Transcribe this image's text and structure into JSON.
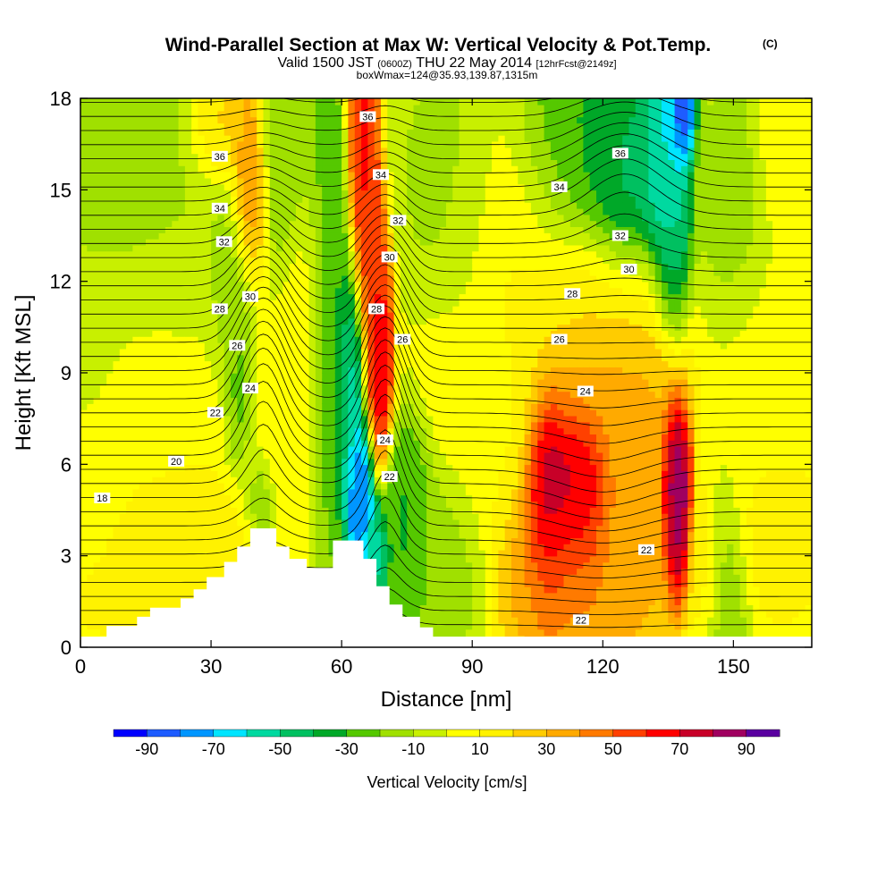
{
  "chart_data": {
    "type": "heatmap",
    "title": "Wind-Parallel Section at Max W: Vertical Velocity & Pot.Temp.",
    "title_mark": "(C)",
    "subtitle": {
      "valid": "Valid 1500 JST",
      "zulu": "(0600Z)",
      "date": "THU 22 May 2014",
      "forecast": "[12hrFcst@2149z]"
    },
    "subtitle2": "boxWmax=124@35.93,139.87,1315m",
    "xlabel": "Distance [nm]",
    "ylabel": "Height [Kft MSL]",
    "xlim": [
      0,
      168
    ],
    "ylim": [
      0,
      18
    ],
    "xticks": [
      0,
      30,
      60,
      90,
      120,
      150
    ],
    "yticks": [
      0,
      3,
      6,
      9,
      12,
      15,
      18
    ],
    "colorbar": {
      "label": "Vertical Velocity [cm/s]",
      "ticks": [
        -90,
        -70,
        -50,
        -30,
        -10,
        10,
        30,
        50,
        70,
        90
      ],
      "bins": [
        -100,
        -90,
        -80,
        -70,
        -60,
        -50,
        -40,
        -30,
        -20,
        -10,
        0,
        10,
        20,
        30,
        40,
        50,
        60,
        70,
        80,
        90,
        100
      ],
      "colors": [
        "#0000ff",
        "#1e5cff",
        "#0096ff",
        "#00e5ff",
        "#00d9a0",
        "#00c060",
        "#00a828",
        "#55c800",
        "#a0e000",
        "#c8f000",
        "#ffff00",
        "#fff200",
        "#ffcc00",
        "#ffaa00",
        "#ff7a00",
        "#ff4000",
        "#ff0000",
        "#c80028",
        "#a00060",
        "#5a00a0"
      ]
    },
    "terrain": [
      [
        0,
        0.35
      ],
      [
        6,
        0.35
      ],
      [
        6,
        0.7
      ],
      [
        13,
        0.7
      ],
      [
        13,
        1.0
      ],
      [
        16,
        1.0
      ],
      [
        16,
        1.3
      ],
      [
        23,
        1.3
      ],
      [
        23,
        1.6
      ],
      [
        26,
        1.6
      ],
      [
        26,
        1.9
      ],
      [
        29,
        1.9
      ],
      [
        29,
        2.3
      ],
      [
        33,
        2.3
      ],
      [
        33,
        2.8
      ],
      [
        36,
        2.8
      ],
      [
        36,
        3.3
      ],
      [
        39,
        3.3
      ],
      [
        39,
        3.9
      ],
      [
        45,
        3.9
      ],
      [
        45,
        3.3
      ],
      [
        48,
        3.3
      ],
      [
        48,
        2.9
      ],
      [
        52,
        2.9
      ],
      [
        52,
        2.6
      ],
      [
        58,
        2.6
      ],
      [
        58,
        3.5
      ],
      [
        65,
        3.5
      ],
      [
        65,
        2.9
      ],
      [
        68,
        2.9
      ],
      [
        68,
        2.0
      ],
      [
        71,
        2.0
      ],
      [
        71,
        1.4
      ],
      [
        74,
        1.4
      ],
      [
        74,
        1.0
      ],
      [
        78,
        1.0
      ],
      [
        78,
        0.65
      ],
      [
        81,
        0.65
      ],
      [
        81,
        0.35
      ],
      [
        168,
        0.35
      ]
    ],
    "field_centers": [
      {
        "x": 0,
        "y": 10,
        "value": -12,
        "sx": 8,
        "sy": 4
      },
      {
        "x": 12,
        "y": 14,
        "value": -14,
        "sx": 14,
        "sy": 5
      },
      {
        "x": 10,
        "y": 6,
        "value": 12,
        "sx": 30,
        "sy": 5
      },
      {
        "x": 22,
        "y": 8,
        "value": 10,
        "sx": 12,
        "sy": 3
      },
      {
        "x": 27,
        "y": 12,
        "value": -10,
        "sx": 10,
        "sy": 3
      },
      {
        "x": 32,
        "y": 17,
        "value": 25,
        "sx": 5,
        "sy": 1.5
      },
      {
        "x": 39,
        "y": 15,
        "value": 50,
        "sx": 3,
        "sy": 2.5
      },
      {
        "x": 34,
        "y": 11,
        "value": -25,
        "sx": 4,
        "sy": 2.5
      },
      {
        "x": 36,
        "y": 8,
        "value": -45,
        "sx": 2.6,
        "sy": 2.5
      },
      {
        "x": 40,
        "y": 4.5,
        "value": -40,
        "sx": 3,
        "sy": 1.5
      },
      {
        "x": 37,
        "y": 4,
        "value": 25,
        "sx": 4,
        "sy": 1.8
      },
      {
        "x": 32,
        "y": 3.2,
        "value": 22,
        "sx": 5,
        "sy": 1.2
      },
      {
        "x": 47,
        "y": 16,
        "value": -20,
        "sx": 5,
        "sy": 3
      },
      {
        "x": 51,
        "y": 10,
        "value": 10,
        "sx": 4,
        "sy": 4
      },
      {
        "x": 57,
        "y": 10,
        "value": -30,
        "sx": 4,
        "sy": 6
      },
      {
        "x": 62,
        "y": 8,
        "value": -60,
        "sx": 3,
        "sy": 3
      },
      {
        "x": 64,
        "y": 5,
        "value": -95,
        "sx": 2.5,
        "sy": 2
      },
      {
        "x": 67,
        "y": 3,
        "value": -55,
        "sx": 2.5,
        "sy": 1.5
      },
      {
        "x": 65,
        "y": 16,
        "value": 65,
        "sx": 2.5,
        "sy": 3
      },
      {
        "x": 68,
        "y": 9.5,
        "value": 75,
        "sx": 2.5,
        "sy": 2.5
      },
      {
        "x": 67,
        "y": 12.5,
        "value": 55,
        "sx": 2.5,
        "sy": 2
      },
      {
        "x": 76,
        "y": 4,
        "value": -35,
        "sx": 4,
        "sy": 2.5
      },
      {
        "x": 83,
        "y": 3,
        "value": -15,
        "sx": 6,
        "sy": 2.5
      },
      {
        "x": 86,
        "y": 15,
        "value": -15,
        "sx": 8,
        "sy": 3
      },
      {
        "x": 92,
        "y": 8,
        "value": 8,
        "sx": 10,
        "sy": 3
      },
      {
        "x": 100,
        "y": 14,
        "value": 12,
        "sx": 12,
        "sy": 3
      },
      {
        "x": 108,
        "y": 5,
        "value": 95,
        "sx": 4,
        "sy": 2.5
      },
      {
        "x": 115,
        "y": 5,
        "value": 95,
        "sx": 5,
        "sy": 2.2
      },
      {
        "x": 112,
        "y": 3,
        "value": 40,
        "sx": 10,
        "sy": 3
      },
      {
        "x": 125,
        "y": 4,
        "value": 35,
        "sx": 8,
        "sy": 3
      },
      {
        "x": 120,
        "y": 9,
        "value": 35,
        "sx": 12,
        "sy": 2.5
      },
      {
        "x": 118,
        "y": 11.5,
        "value": 15,
        "sx": 14,
        "sy": 2
      },
      {
        "x": 137,
        "y": 5,
        "value": 95,
        "sx": 2.5,
        "sy": 2.2
      },
      {
        "x": 144,
        "y": 3,
        "value": 20,
        "sx": 3,
        "sy": 2
      },
      {
        "x": 148,
        "y": 2.5,
        "value": -20,
        "sx": 4,
        "sy": 2.5
      },
      {
        "x": 160,
        "y": 4,
        "value": 18,
        "sx": 8,
        "sy": 2
      },
      {
        "x": 112,
        "y": 16,
        "value": -35,
        "sx": 10,
        "sy": 2.5
      },
      {
        "x": 125,
        "y": 15,
        "value": -45,
        "sx": 7,
        "sy": 2.5
      },
      {
        "x": 134,
        "y": 16,
        "value": -65,
        "sx": 4,
        "sy": 3
      },
      {
        "x": 138,
        "y": 17.5,
        "value": -95,
        "sx": 2,
        "sy": 1.2
      },
      {
        "x": 136,
        "y": 13,
        "value": -50,
        "sx": 3,
        "sy": 2
      },
      {
        "x": 150,
        "y": 14,
        "value": -15,
        "sx": 6,
        "sy": 3
      },
      {
        "x": 162,
        "y": 16,
        "value": 8,
        "sx": 5,
        "sy": 2
      },
      {
        "x": 158,
        "y": 8,
        "value": 6,
        "sx": 10,
        "sy": 4
      }
    ],
    "contour_labels": [
      {
        "x": 5,
        "y": 4.9,
        "text": "18"
      },
      {
        "x": 22,
        "y": 6.1,
        "text": "20"
      },
      {
        "x": 31,
        "y": 7.7,
        "text": "22"
      },
      {
        "x": 39,
        "y": 8.5,
        "text": "24"
      },
      {
        "x": 36,
        "y": 9.9,
        "text": "26"
      },
      {
        "x": 32,
        "y": 11.1,
        "text": "28"
      },
      {
        "x": 39,
        "y": 11.5,
        "text": "30"
      },
      {
        "x": 33,
        "y": 13.3,
        "text": "32"
      },
      {
        "x": 32,
        "y": 14.4,
        "text": "34"
      },
      {
        "x": 32,
        "y": 16.1,
        "text": "36"
      },
      {
        "x": 66,
        "y": 17.4,
        "text": "36"
      },
      {
        "x": 69,
        "y": 15.5,
        "text": "34"
      },
      {
        "x": 73,
        "y": 14.0,
        "text": "32"
      },
      {
        "x": 71,
        "y": 12.8,
        "text": "30"
      },
      {
        "x": 68,
        "y": 11.1,
        "text": "28"
      },
      {
        "x": 74,
        "y": 10.1,
        "text": "26"
      },
      {
        "x": 70,
        "y": 6.8,
        "text": "24"
      },
      {
        "x": 71,
        "y": 5.6,
        "text": "22"
      },
      {
        "x": 124,
        "y": 16.2,
        "text": "36"
      },
      {
        "x": 110,
        "y": 15.1,
        "text": "34"
      },
      {
        "x": 124,
        "y": 13.5,
        "text": "32"
      },
      {
        "x": 126,
        "y": 12.4,
        "text": "30"
      },
      {
        "x": 113,
        "y": 11.6,
        "text": "28"
      },
      {
        "x": 110,
        "y": 10.1,
        "text": "26"
      },
      {
        "x": 116,
        "y": 8.4,
        "text": "24"
      },
      {
        "x": 130,
        "y": 3.2,
        "text": "22"
      },
      {
        "x": 115,
        "y": 0.9,
        "text": "22"
      }
    ]
  }
}
